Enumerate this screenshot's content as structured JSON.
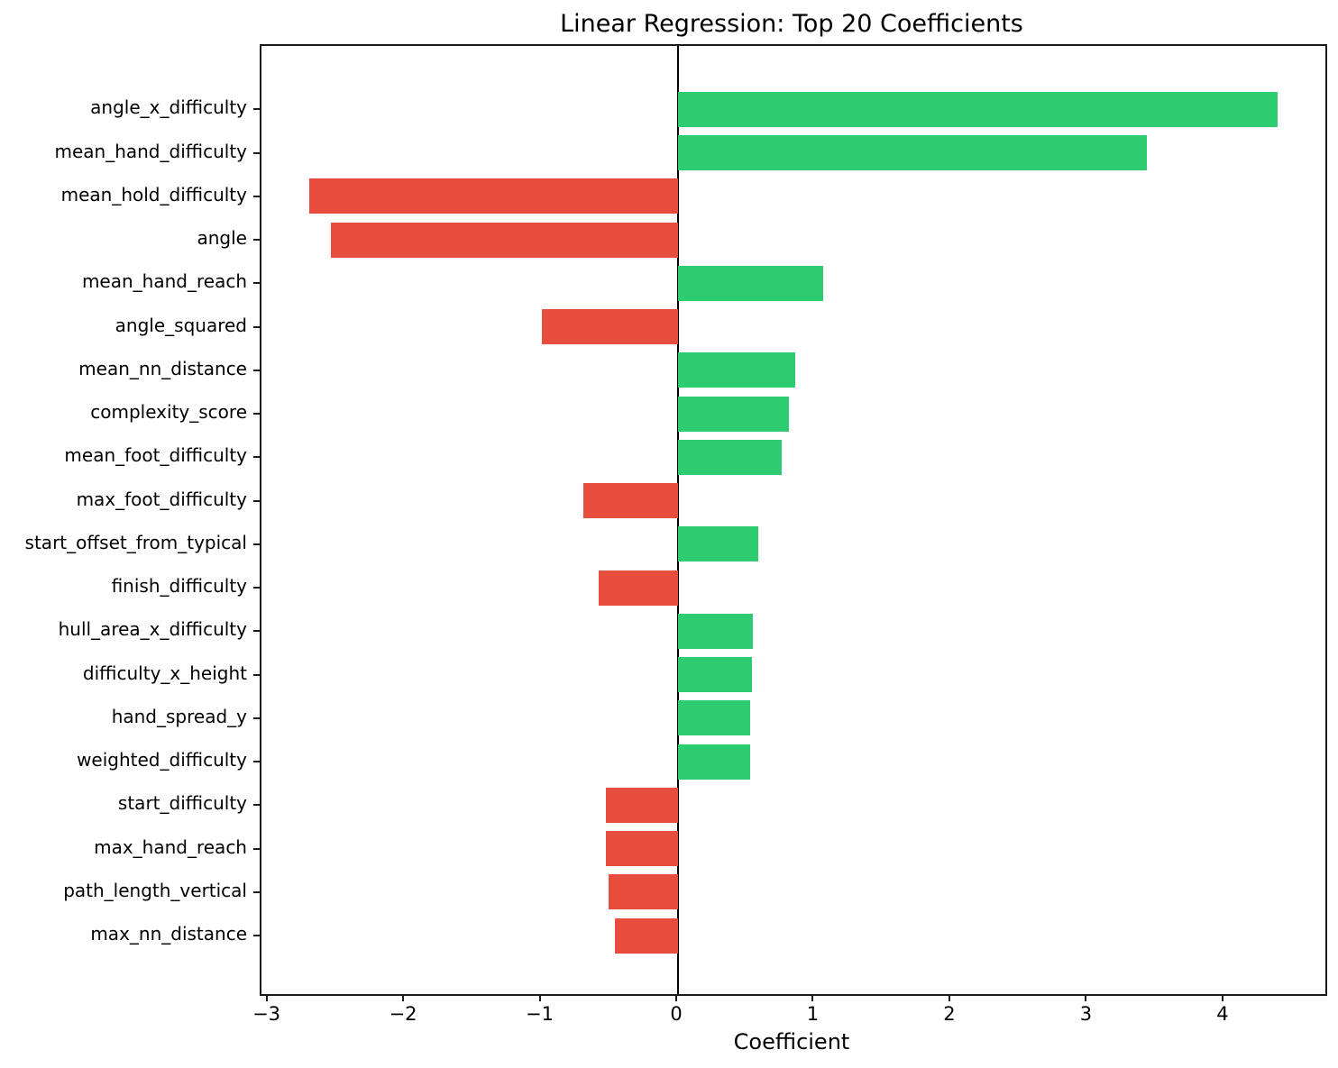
{
  "chart_data": {
    "type": "bar",
    "orientation": "horizontal",
    "title": "Linear Regression: Top 20 Coefficients",
    "xlabel": "Coefficient",
    "ylabel": "",
    "grid": false,
    "legend": false,
    "xlim": [
      -3.05,
      4.74
    ],
    "x_ticks": [
      -3,
      -2,
      -1,
      0,
      1,
      2,
      3,
      4
    ],
    "x_tick_labels": [
      "−3",
      "−2",
      "−1",
      "0",
      "1",
      "2",
      "3",
      "4"
    ],
    "categories": [
      "angle_x_difficulty",
      "mean_hand_difficulty",
      "mean_hold_difficulty",
      "angle",
      "mean_hand_reach",
      "angle_squared",
      "mean_nn_distance",
      "complexity_score",
      "mean_foot_difficulty",
      "max_foot_difficulty",
      "start_offset_from_typical",
      "finish_difficulty",
      "hull_area_x_difficulty",
      "difficulty_x_height",
      "hand_spread_y",
      "weighted_difficulty",
      "start_difficulty",
      "max_hand_reach",
      "path_length_vertical",
      "max_nn_distance"
    ],
    "values": [
      4.39,
      3.43,
      -2.7,
      -2.54,
      1.06,
      -1.0,
      0.86,
      0.81,
      0.76,
      -0.69,
      0.59,
      -0.58,
      0.55,
      0.54,
      0.53,
      0.53,
      -0.53,
      -0.53,
      -0.51,
      -0.46
    ],
    "positive_color": "#2ecc71",
    "negative_color": "#e74c3c",
    "zero_line_color": "#000000"
  }
}
